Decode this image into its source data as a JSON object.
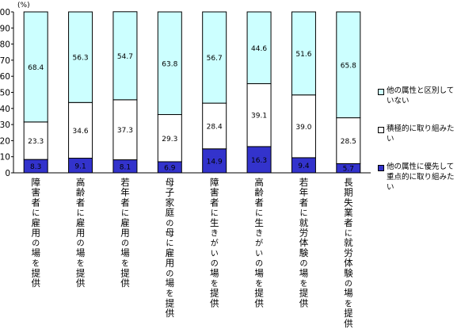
{
  "chart_data": {
    "type": "bar",
    "stacked": true,
    "ylabel": "(%)",
    "ylim": [
      0,
      100
    ],
    "yticks": [
      0,
      10,
      20,
      30,
      40,
      50,
      60,
      70,
      80,
      90,
      100
    ],
    "categories": [
      "障害者に雇用の場を提供",
      "高齢者に雇用の場を提供",
      "若年者に雇用の場を提供",
      "母子家庭の母に雇用の場を提供",
      "障害者に生きがいの場を提供",
      "高齢者に生きがいの場を提供",
      "若年者に就労体験の場を提供",
      "長期失業者に就労体験の場を提供"
    ],
    "series": [
      {
        "name": "他の属性に優先して重点的に取り組みたい",
        "color": "#3333cc",
        "values": [
          8.3,
          9.1,
          8.1,
          6.9,
          14.9,
          16.3,
          9.4,
          5.7
        ]
      },
      {
        "name": "積極的に取り組みたい",
        "color": "#ffffff",
        "values": [
          23.3,
          34.6,
          37.3,
          29.3,
          28.4,
          39.1,
          39.0,
          28.5
        ]
      },
      {
        "name": "他の属性と区別していない",
        "color": "#ccffff",
        "values": [
          68.4,
          56.3,
          54.7,
          63.8,
          56.7,
          44.6,
          51.6,
          65.8
        ]
      }
    ],
    "legend_position": "right"
  },
  "legend": [
    {
      "label": "他の属性と区別して\nいない",
      "color": "#ccffff"
    },
    {
      "label": "積極的に取り組みた\nい",
      "color": "#ffffff"
    },
    {
      "label": "他の属性に優先して\n重点的に取り組みた\nい",
      "color": "#3333cc"
    }
  ]
}
